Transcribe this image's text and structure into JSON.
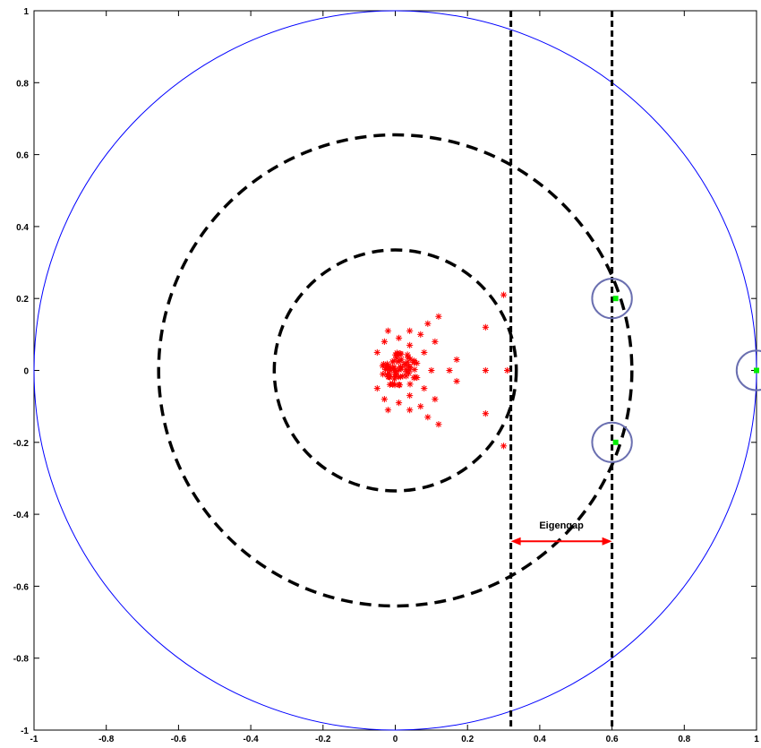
{
  "chart_data": {
    "type": "scatter",
    "title": "",
    "xlabel": "",
    "ylabel": "",
    "xlim": [
      -1,
      1
    ],
    "ylim": [
      -1,
      1
    ],
    "grid": false,
    "x_ticks": [
      -1,
      -0.8,
      -0.6,
      -0.4,
      -0.2,
      0,
      0.2,
      0.4,
      0.6,
      0.8,
      1
    ],
    "y_ticks": [
      1,
      0.8,
      0.6,
      0.4,
      0.2,
      0,
      -0.2,
      -0.4,
      -0.6,
      -0.8,
      -1
    ],
    "x_tick_labels": [
      "-1",
      "-0.8",
      "-0.6",
      "-0.4",
      "-0.2",
      "0",
      "0.2",
      "0.4",
      "0.6",
      "0.8",
      "1"
    ],
    "y_tick_labels": [
      "1",
      "0.8",
      "0.6",
      "0.4",
      "0.2",
      "0",
      "-0.2",
      "-0.4",
      "-0.6",
      "-0.8",
      "-1"
    ],
    "unit_circle": {
      "radius": 1,
      "color": "#0000ff"
    },
    "dashed_circles": [
      {
        "radius": 0.335,
        "color": "#000000"
      },
      {
        "radius": 0.655,
        "color": "#000000"
      }
    ],
    "vertical_dashed_lines": [
      {
        "x": 0.32,
        "color": "#000000"
      },
      {
        "x": 0.6,
        "color": "#000000"
      }
    ],
    "highlight_circles": [
      {
        "x": 0.6,
        "y": 0.2,
        "radius": 0.055,
        "color": "#6a6fb0"
      },
      {
        "x": 0.6,
        "y": -0.2,
        "radius": 0.055,
        "color": "#6a6fb0"
      },
      {
        "x": 1.0,
        "y": 0.0,
        "radius": 0.055,
        "color": "#6a6fb0"
      }
    ],
    "series": [
      {
        "marker": "asterisk",
        "color": "#ff0000",
        "points": [
          [
            0.3,
            0.21
          ],
          [
            0.3,
            -0.21
          ],
          [
            0.31,
            0.0
          ],
          [
            0.25,
            0.12
          ],
          [
            0.25,
            -0.12
          ],
          [
            0.25,
            0.0
          ],
          [
            0.17,
            0.03
          ],
          [
            0.17,
            -0.03
          ],
          [
            0.12,
            0.15
          ],
          [
            0.12,
            -0.15
          ],
          [
            0.11,
            0.08
          ],
          [
            0.11,
            -0.08
          ],
          [
            0.15,
            0.0
          ],
          [
            0.1,
            0.0
          ],
          [
            0.08,
            0.05
          ],
          [
            0.08,
            -0.05
          ],
          [
            0.07,
            0.1
          ],
          [
            0.07,
            -0.1
          ],
          [
            0.04,
            0.11
          ],
          [
            0.04,
            -0.11
          ],
          [
            0.06,
            0.02
          ],
          [
            0.06,
            -0.02
          ],
          [
            -0.03,
            0.08
          ],
          [
            -0.03,
            -0.08
          ],
          [
            -0.05,
            0.05
          ],
          [
            -0.05,
            -0.05
          ],
          [
            0.04,
            0.07
          ],
          [
            0.04,
            -0.07
          ],
          [
            0.01,
            0.09
          ],
          [
            0.01,
            -0.09
          ],
          [
            -0.02,
            0.11
          ],
          [
            -0.02,
            -0.11
          ],
          [
            0.09,
            0.13
          ],
          [
            0.09,
            -0.13
          ],
          [
            0.0,
            0.0
          ]
        ],
        "cluster": {
          "center": [
            0.0,
            0.0
          ],
          "radius": 0.05,
          "count": 70
        }
      },
      {
        "marker": "square",
        "color": "#00ee00",
        "points": [
          [
            0.61,
            0.2
          ],
          [
            0.61,
            -0.2
          ],
          [
            1.0,
            0.0
          ]
        ]
      }
    ],
    "annotations": [
      {
        "text": "Eigengap",
        "x": 0.46,
        "y": -0.44,
        "arrow": {
          "from": 0.32,
          "to": 0.6,
          "y": -0.475,
          "color": "#ff0000"
        }
      }
    ]
  }
}
